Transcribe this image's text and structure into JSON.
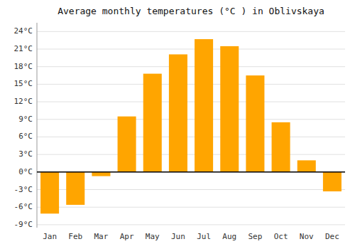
{
  "chart_data": {
    "type": "bar",
    "title": "Average monthly temperatures (°C ) in Oblivskaya",
    "categories": [
      "Jan",
      "Feb",
      "Mar",
      "Apr",
      "May",
      "Jun",
      "Jul",
      "Aug",
      "Sep",
      "Oct",
      "Nov",
      "Dec"
    ],
    "values": [
      -7.1,
      -5.6,
      -0.7,
      9.5,
      16.8,
      20.1,
      22.7,
      21.5,
      16.5,
      8.5,
      2.0,
      -3.3
    ],
    "color": "#FFA500",
    "ylim": [
      -9.5,
      25.5
    ],
    "yticks": [
      {
        "value": -9,
        "label": "-9°C"
      },
      {
        "value": -6,
        "label": "-6°C"
      },
      {
        "value": -3,
        "label": "-3°C"
      },
      {
        "value": 0,
        "label": "0°C"
      },
      {
        "value": 3,
        "label": "3°C"
      },
      {
        "value": 6,
        "label": "6°C"
      },
      {
        "value": 9,
        "label": "9°C"
      },
      {
        "value": 12,
        "label": "12°C"
      },
      {
        "value": 15,
        "label": "15°C"
      },
      {
        "value": 18,
        "label": "18°C"
      },
      {
        "value": 21,
        "label": "21°C"
      },
      {
        "value": 24,
        "label": "24°C"
      }
    ],
    "grid": true
  }
}
